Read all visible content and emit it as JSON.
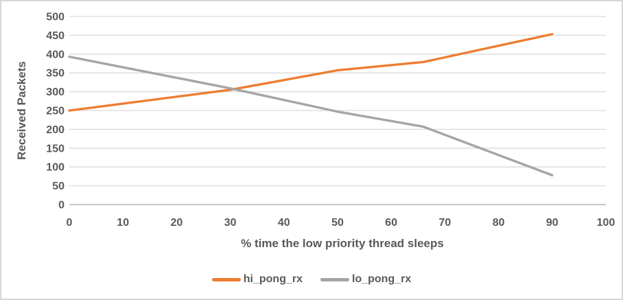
{
  "chart_data": {
    "type": "line",
    "title": "",
    "xlabel": "% time the low priority thread sleeps",
    "ylabel": "Received Packets",
    "xlim": [
      0,
      100
    ],
    "ylim": [
      0,
      500
    ],
    "x_ticks": [
      0,
      10,
      20,
      30,
      40,
      50,
      60,
      70,
      80,
      90,
      100
    ],
    "y_ticks": [
      0,
      50,
      100,
      150,
      200,
      250,
      300,
      350,
      400,
      450,
      500
    ],
    "grid": "horizontal",
    "legend_position": "bottom",
    "x": [
      0,
      30,
      50,
      66,
      90
    ],
    "series": [
      {
        "name": "hi_pong_rx",
        "color": "#ED7D31",
        "values": [
          250,
          305,
          357,
          379,
          453
        ]
      },
      {
        "name": "lo_pong_rx",
        "color": "#A5A5A5",
        "values": [
          393,
          309,
          247,
          207,
          78
        ]
      }
    ]
  },
  "styles": {
    "text_color": "#595959",
    "gridline_color": "#D9D9D9",
    "axis_line_color": "#BFBFBF",
    "background": "#FFFFFF",
    "border_color": "#D6D6D6"
  }
}
